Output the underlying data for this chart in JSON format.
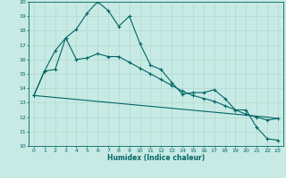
{
  "xlabel": "Humidex (Indice chaleur)",
  "xlim": [
    -0.5,
    23.5
  ],
  "ylim": [
    10,
    20
  ],
  "yticks": [
    10,
    11,
    12,
    13,
    14,
    15,
    16,
    17,
    18,
    19,
    20
  ],
  "xticks": [
    0,
    1,
    2,
    3,
    4,
    5,
    6,
    7,
    8,
    9,
    10,
    11,
    12,
    13,
    14,
    15,
    16,
    17,
    18,
    19,
    20,
    21,
    22,
    23
  ],
  "bg_color": "#c8eae4",
  "line_color": "#006666",
  "grid_major_color": "#b0d8d0",
  "grid_minor_color": "#c0e0da",
  "line1_x": [
    0,
    1,
    2,
    3,
    4,
    5,
    6,
    7,
    8,
    9,
    10,
    11,
    12,
    13,
    14,
    15,
    16,
    17,
    18,
    19,
    20,
    21,
    22,
    23
  ],
  "line1_y": [
    13.5,
    15.2,
    15.3,
    17.5,
    18.1,
    19.2,
    20.0,
    19.4,
    18.3,
    19.0,
    17.1,
    15.6,
    15.3,
    14.4,
    13.6,
    13.7,
    13.7,
    13.9,
    13.3,
    12.5,
    12.5,
    11.3,
    10.5,
    10.4
  ],
  "line2_x": [
    0,
    1,
    2,
    3,
    4,
    5,
    6,
    7,
    8,
    9,
    10,
    11,
    12,
    13,
    14,
    15,
    16,
    17,
    18,
    19,
    20,
    21,
    22,
    23
  ],
  "line2_y": [
    13.5,
    15.2,
    16.6,
    17.5,
    16.0,
    16.1,
    16.4,
    16.2,
    16.2,
    15.8,
    15.4,
    15.0,
    14.6,
    14.2,
    13.8,
    13.5,
    13.3,
    13.1,
    12.8,
    12.5,
    12.2,
    12.0,
    11.8,
    11.9
  ],
  "line3_x": [
    0,
    22,
    23
  ],
  "line3_y": [
    13.5,
    12.0,
    11.9
  ]
}
